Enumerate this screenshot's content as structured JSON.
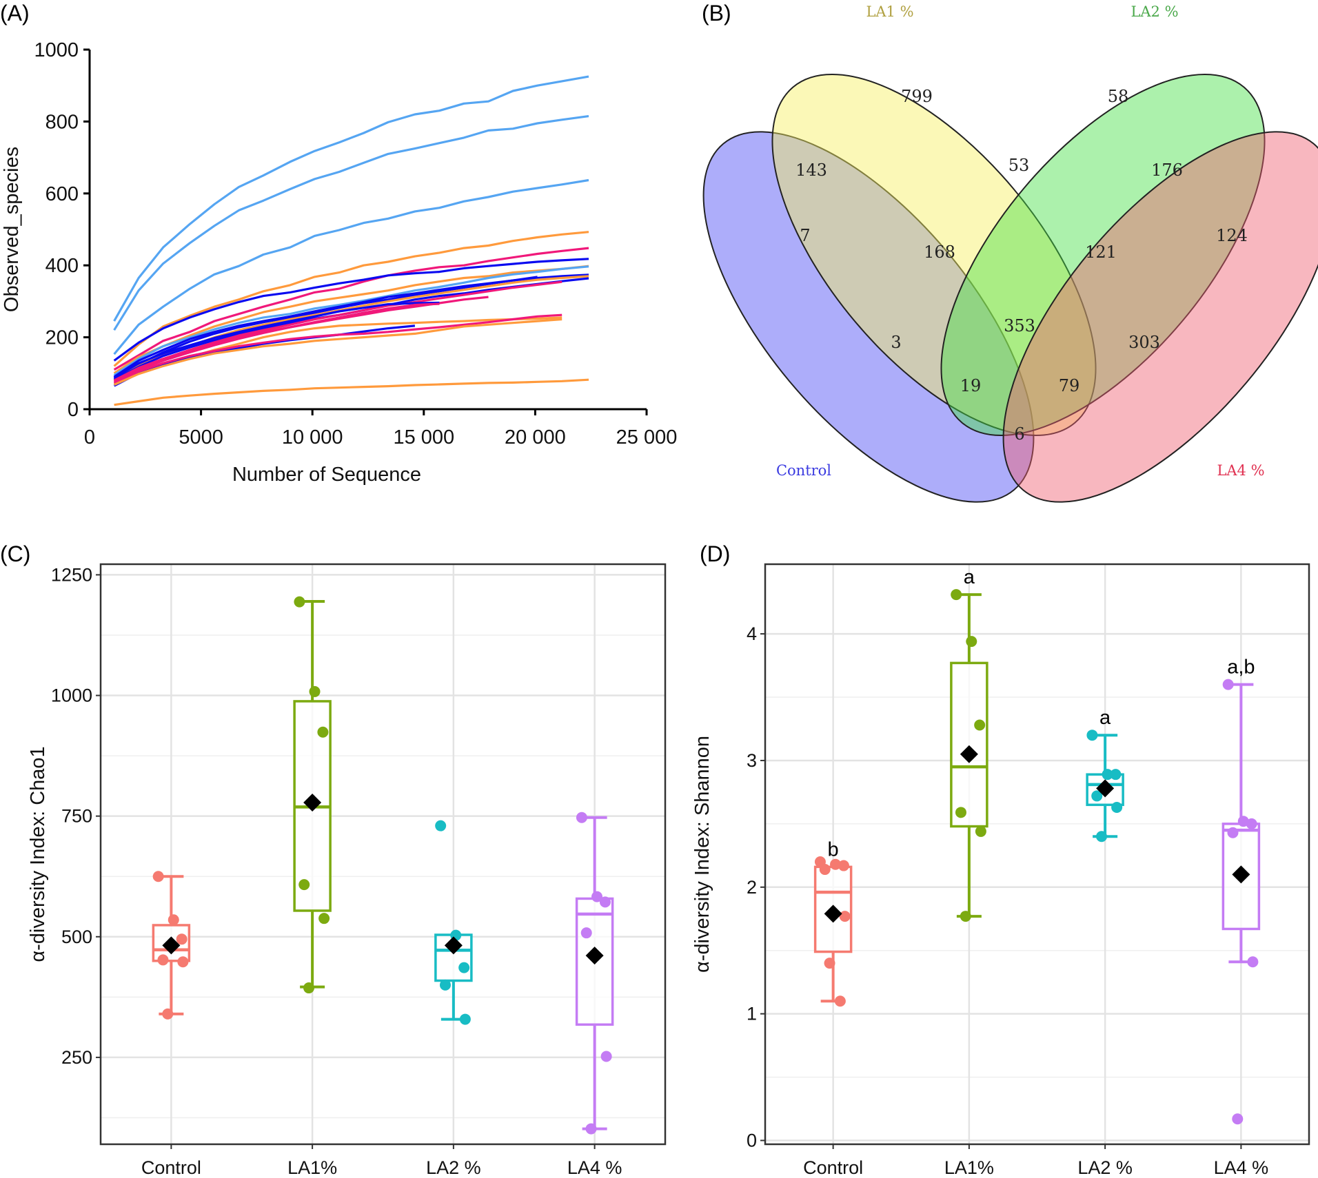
{
  "panel_labels": {
    "a": "(A)",
    "b": "(B)",
    "c": "(C)",
    "d": "(D)"
  },
  "chart_data": [
    {
      "id": "A",
      "type": "line",
      "title": "",
      "xlabel": "Number of Sequence",
      "ylabel": "Observed_species",
      "xlim": [
        0,
        25000
      ],
      "ylim": [
        0,
        1000
      ],
      "xticks": [
        0,
        5000,
        10000,
        15000,
        20000,
        25000
      ],
      "xtick_labels": [
        "0",
        "5000",
        "10 000",
        "15 000",
        "20 000",
        "25 000"
      ],
      "yticks": [
        0,
        200,
        400,
        600,
        800,
        1000
      ],
      "ytick_labels": [
        "0",
        "200",
        "400",
        "600",
        "800",
        "1000"
      ],
      "grid": false,
      "x": [
        1100,
        2200,
        3300,
        4500,
        5600,
        6700,
        7800,
        9000,
        10100,
        11200,
        12300,
        13400,
        14600,
        15700,
        16800,
        17900,
        19000,
        20100,
        21200,
        22400
      ],
      "group_colors": {
        "lightblue": "#55a5f2",
        "blue": "#0a0af0",
        "pink": "#f0187a",
        "orange": "#ff9a3c"
      },
      "series": [
        {
          "group": "lightblue",
          "values": [
            245,
            365,
            450,
            515,
            570,
            618,
            650,
            688,
            718,
            742,
            768,
            798,
            820,
            830,
            850,
            856,
            885,
            900,
            912,
            925
          ]
        },
        {
          "group": "lightblue",
          "values": [
            220,
            330,
            405,
            462,
            510,
            553,
            580,
            612,
            640,
            660,
            685,
            710,
            725,
            740,
            755,
            775,
            780,
            795,
            805,
            815
          ]
        },
        {
          "group": "lightblue",
          "values": [
            153,
            235,
            285,
            335,
            375,
            398,
            430,
            450,
            482,
            498,
            518,
            530,
            550,
            560,
            578,
            590,
            605,
            615,
            625,
            637
          ]
        },
        {
          "group": "orange",
          "values": [
            120,
            180,
            230,
            260,
            285,
            305,
            328,
            345,
            368,
            380,
            400,
            410,
            425,
            435,
            448,
            455,
            468,
            478,
            486,
            493
          ]
        },
        {
          "group": "pink",
          "values": [
            110,
            150,
            190,
            215,
            245,
            265,
            285,
            305,
            325,
            335,
            355,
            372,
            385,
            395,
            400,
            412,
            422,
            432,
            440,
            448
          ]
        },
        {
          "group": "blue",
          "values": [
            135,
            185,
            225,
            255,
            278,
            298,
            315,
            325,
            338,
            350,
            360,
            372,
            378,
            382,
            392,
            398,
            404,
            410,
            414,
            418
          ]
        },
        {
          "group": "orange",
          "values": [
            100,
            145,
            175,
            205,
            230,
            250,
            270,
            285,
            300,
            310,
            320,
            330,
            345,
            355,
            365,
            370,
            380,
            385,
            390,
            398
          ]
        },
        {
          "group": "lightblue",
          "values": [
            95,
            140,
            175,
            200,
            222,
            240,
            255,
            265,
            280,
            290,
            302,
            315,
            330,
            340,
            352,
            365,
            375,
            382,
            390,
            397
          ]
        },
        {
          "group": "blue",
          "values": [
            90,
            135,
            165,
            195,
            215,
            232,
            245,
            258,
            272,
            285,
            298,
            312,
            322,
            332,
            342,
            350,
            358,
            365,
            370,
            374
          ]
        },
        {
          "group": "blue",
          "values": [
            85,
            125,
            158,
            188,
            210,
            228,
            242,
            255,
            268,
            282,
            295,
            305,
            318,
            328,
            338,
            348,
            358,
            368
          ]
        },
        {
          "group": "orange",
          "values": [
            80,
            120,
            150,
            175,
            200,
            220,
            235,
            250,
            262,
            275,
            288,
            300,
            312,
            322,
            332,
            342,
            352,
            360,
            365,
            370
          ]
        },
        {
          "group": "blue",
          "values": [
            82,
            118,
            148,
            172,
            192,
            210,
            225,
            240,
            252,
            262,
            275,
            290,
            305,
            315,
            322,
            332,
            340,
            348,
            356,
            364
          ]
        },
        {
          "group": "pink",
          "values": [
            78,
            112,
            140,
            165,
            186,
            205,
            220,
            235,
            250,
            262,
            275,
            288,
            298,
            308,
            318,
            328,
            338,
            346,
            354
          ]
        },
        {
          "group": "pink",
          "values": [
            75,
            110,
            135,
            158,
            178,
            196,
            212,
            228,
            240,
            252,
            263,
            275,
            285,
            295,
            305,
            312
          ]
        },
        {
          "group": "blue",
          "values": [
            88,
            128,
            155,
            178,
            198,
            215,
            230,
            245,
            258,
            272,
            282,
            292,
            295,
            296
          ]
        },
        {
          "group": "pink",
          "values": [
            80,
            115,
            140,
            162,
            182,
            200,
            215,
            228,
            242,
            255,
            268,
            280,
            290,
            293
          ]
        },
        {
          "group": "orange",
          "values": [
            70,
            100,
            125,
            145,
            165,
            182,
            200,
            215,
            225,
            232,
            235,
            238,
            240,
            243,
            245,
            248,
            250,
            252,
            255
          ]
        },
        {
          "group": "blue",
          "values": [
            65,
            100,
            125,
            145,
            160,
            170,
            182,
            192,
            200,
            207,
            216,
            225,
            232
          ]
        },
        {
          "group": "pink",
          "values": [
            72,
            105,
            128,
            148,
            162,
            175,
            185,
            195,
            202,
            207,
            210,
            215,
            222,
            228,
            235,
            242,
            250,
            258,
            262
          ]
        },
        {
          "group": "orange",
          "values": [
            68,
            98,
            120,
            140,
            155,
            165,
            175,
            182,
            190,
            195,
            200,
            205,
            210,
            220,
            230,
            235,
            240,
            245,
            250
          ]
        },
        {
          "group": "orange",
          "values": [
            12,
            22,
            32,
            38,
            43,
            47,
            51,
            54,
            58,
            60,
            62,
            64,
            67,
            69,
            71,
            73,
            74,
            76,
            78,
            82
          ]
        }
      ]
    },
    {
      "id": "B",
      "type": "venn",
      "sets": [
        {
          "name": "Control",
          "color": "#4a4af5"
        },
        {
          "name": "LA1 %",
          "color": "#f7f060"
        },
        {
          "name": "LA2 %",
          "color": "#46e046"
        },
        {
          "name": "LA4 %",
          "color": "#f06070"
        }
      ],
      "set_label_colors": {
        "Control": "#3a3ae0",
        "LA1 %": "#b0a040",
        "LA2 %": "#4aa84a",
        "LA4 %": "#e03050"
      },
      "regions": [
        {
          "sets": [
            "Control"
          ],
          "value": 7
        },
        {
          "sets": [
            "LA1 %"
          ],
          "value": 799
        },
        {
          "sets": [
            "LA2 %"
          ],
          "value": 58
        },
        {
          "sets": [
            "LA4 %"
          ],
          "value": 124
        },
        {
          "sets": [
            "Control",
            "LA1 %"
          ],
          "value": 143
        },
        {
          "sets": [
            "LA1 %",
            "LA2 %"
          ],
          "value": 53
        },
        {
          "sets": [
            "LA2 %",
            "LA4 %"
          ],
          "value": 176
        },
        {
          "sets": [
            "Control",
            "LA1 %",
            "LA2 %"
          ],
          "value": 168
        },
        {
          "sets": [
            "LA1 %",
            "LA2 %",
            "LA4 %"
          ],
          "value": 121
        },
        {
          "sets": [
            "Control",
            "LA1 %",
            "LA2 %",
            "LA4 %"
          ],
          "value": 353
        },
        {
          "sets": [
            "Control",
            "LA2 %"
          ],
          "value": 3
        },
        {
          "sets": [
            "LA1 %",
            "LA4 %"
          ],
          "value": 303
        },
        {
          "sets": [
            "Control",
            "LA2 %",
            "LA4 %"
          ],
          "value": 19
        },
        {
          "sets": [
            "Control",
            "LA1 %",
            "LA4 %"
          ],
          "value": 79
        },
        {
          "sets": [
            "Control",
            "LA4 %"
          ],
          "value": 6
        }
      ]
    },
    {
      "id": "C",
      "type": "box",
      "ylabel": "α-diversity Index: Chao1",
      "xlabel": "",
      "ylim": [
        70,
        1272
      ],
      "yticks": [
        250,
        500,
        750,
        1000,
        1250
      ],
      "ytick_labels": [
        "250",
        "500",
        "750",
        "1000",
        "1250"
      ],
      "grid": true,
      "categories": [
        "Control",
        "LA1%",
        "LA2 %",
        "LA4 %"
      ],
      "colors": [
        "#f57a70",
        "#7caa10",
        "#18bcc4",
        "#c47cf4"
      ],
      "groups": [
        {
          "q1": 450,
          "median": 473,
          "q3": 524,
          "whisker_low": 340,
          "whisker_high": 625,
          "mean": 482,
          "points": [
            625,
            535,
            495,
            452,
            448,
            340
          ],
          "letter": ""
        },
        {
          "q1": 554,
          "median": 769,
          "q3": 988,
          "whisker_low": 396,
          "whisker_high": 1195,
          "mean": 778,
          "points": [
            1194,
            1008,
            924,
            608,
            538,
            394
          ],
          "letter": ""
        },
        {
          "q1": 409,
          "median": 472,
          "q3": 504,
          "whisker_low": 329,
          "whisker_high": 504,
          "mean": 482,
          "points": [
            730,
            503,
            436,
            400,
            329
          ],
          "letter": ""
        },
        {
          "q1": 318,
          "median": 547,
          "q3": 579,
          "whisker_low": 102,
          "whisker_high": 747,
          "mean": 461,
          "points": [
            747,
            583,
            572,
            508,
            252,
            102
          ],
          "letter": ""
        }
      ]
    },
    {
      "id": "D",
      "type": "box",
      "ylabel": "α-diversity Index: Shannon",
      "xlabel": "",
      "ylim": [
        -0.03,
        4.55
      ],
      "yticks": [
        0,
        1,
        2,
        3,
        4
      ],
      "ytick_labels": [
        "0",
        "1",
        "2",
        "3",
        "4"
      ],
      "grid": true,
      "categories": [
        "Control",
        "LA1%",
        "LA2 %",
        "LA4 %"
      ],
      "colors": [
        "#f57a70",
        "#7caa10",
        "#18bcc4",
        "#c47cf4"
      ],
      "groups": [
        {
          "q1": 1.49,
          "median": 1.96,
          "q3": 2.16,
          "whisker_low": 1.1,
          "whisker_high": 2.16,
          "mean": 1.79,
          "points": [
            2.2,
            2.18,
            2.17,
            2.14,
            1.77,
            1.4,
            1.1
          ],
          "letter": "b"
        },
        {
          "q1": 2.48,
          "median": 2.95,
          "q3": 3.77,
          "whisker_low": 1.77,
          "whisker_high": 4.31,
          "mean": 3.05,
          "points": [
            4.31,
            3.94,
            3.28,
            2.59,
            2.44,
            1.77
          ],
          "letter": "a"
        },
        {
          "q1": 2.65,
          "median": 2.81,
          "q3": 2.89,
          "whisker_low": 2.4,
          "whisker_high": 3.2,
          "mean": 2.78,
          "points": [
            3.2,
            2.89,
            2.89,
            2.72,
            2.63,
            2.4
          ],
          "letter": "a"
        },
        {
          "q1": 1.67,
          "median": 2.45,
          "q3": 2.5,
          "whisker_low": 1.41,
          "whisker_high": 3.6,
          "mean": 2.1,
          "points": [
            3.6,
            2.52,
            2.5,
            2.43,
            1.41,
            0.17
          ],
          "letter": "a,b"
        }
      ]
    }
  ]
}
